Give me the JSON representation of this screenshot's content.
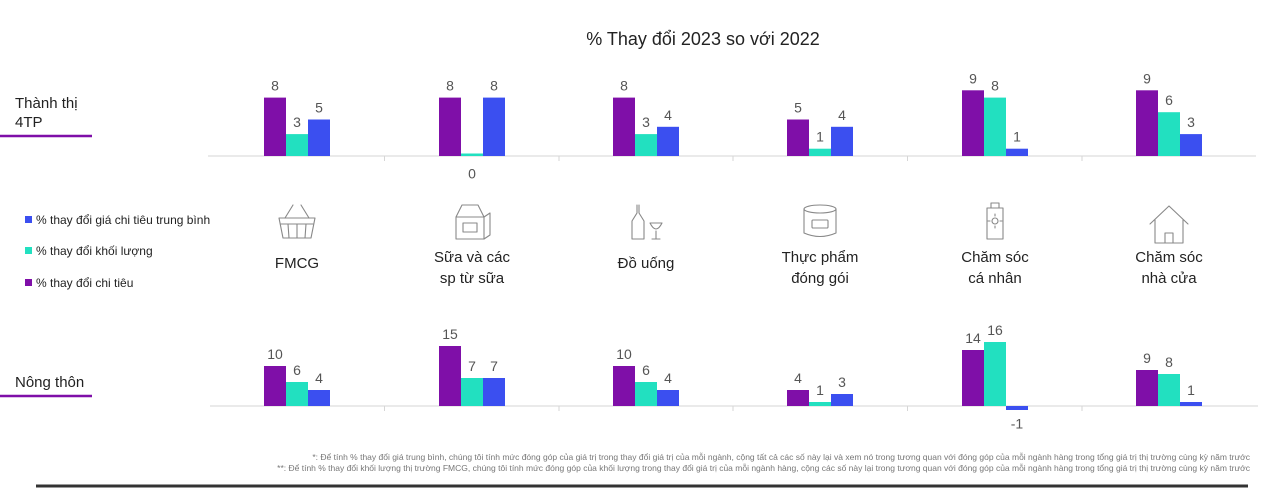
{
  "title": "% Thay đổi 2023 so với 2022",
  "colors": {
    "spend": "#7f0fa8",
    "volume": "#22e0c0",
    "avg_price": "#3b4ff0",
    "accent": "#22d3c5"
  },
  "legend": [
    {
      "key": "avg_price",
      "label": "% thay đổi giá chi tiêu trung bình"
    },
    {
      "key": "volume",
      "label": "% thay đổi khối lượng"
    },
    {
      "key": "spend",
      "label": "% thay đổi chi tiêu"
    }
  ],
  "categories": [
    {
      "lines": [
        "FMCG"
      ],
      "icon": "basket-icon"
    },
    {
      "lines": [
        "Sữa và các",
        "sp từ sữa"
      ],
      "icon": "milk-carton-icon"
    },
    {
      "lines": [
        "Đồ uống"
      ],
      "icon": "bottle-glass-icon"
    },
    {
      "lines": [
        "Thực phẩm",
        "đóng gói"
      ],
      "icon": "food-can-icon"
    },
    {
      "lines": [
        "Chăm sóc",
        "cá nhân"
      ],
      "icon": "lotion-tube-icon"
    },
    {
      "lines": [
        "Chăm sóc",
        "nhà cửa"
      ],
      "icon": "house-icon"
    }
  ],
  "chart_data": [
    {
      "type": "bar",
      "region": [
        "Thành thị",
        "4TP"
      ],
      "categories": [
        "FMCG",
        "Sữa và các sp từ sữa",
        "Đồ uống",
        "Thực phẩm đóng gói",
        "Chăm sóc cá nhân",
        "Chăm sóc nhà cửa"
      ],
      "series": [
        {
          "name": "% thay đổi chi tiêu",
          "key": "spend",
          "values": [
            8,
            8,
            8,
            5,
            9,
            9
          ]
        },
        {
          "name": "% thay đổi khối lượng",
          "key": "volume",
          "values": [
            3,
            0,
            3,
            1,
            8,
            6
          ]
        },
        {
          "name": "% thay đổi giá chi tiêu trung bình",
          "key": "avg_price",
          "values": [
            5,
            8,
            4,
            4,
            1,
            3
          ]
        }
      ]
    },
    {
      "type": "bar",
      "region": [
        "Nông thôn"
      ],
      "categories": [
        "FMCG",
        "Sữa và các sp từ sữa",
        "Đồ uống",
        "Thực phẩm đóng gói",
        "Chăm sóc cá nhân",
        "Chăm sóc nhà cửa"
      ],
      "series": [
        {
          "name": "% thay đổi chi tiêu",
          "key": "spend",
          "values": [
            10,
            15,
            10,
            4,
            14,
            9
          ]
        },
        {
          "name": "% thay đổi khối lượng",
          "key": "volume",
          "values": [
            6,
            7,
            6,
            1,
            16,
            8
          ]
        },
        {
          "name": "% thay đổi giá chi tiêu trung bình",
          "key": "avg_price",
          "values": [
            4,
            7,
            4,
            3,
            -1,
            1
          ]
        }
      ]
    }
  ],
  "footnotes": [
    "*: Để tính % thay đổi giá trung bình, chúng tôi tính mức đóng góp của giá trị trong thay đổi giá trị của mỗi ngành, cộng tất cả các số này lại và xem nó trong tương quan với đóng góp của mỗi ngành hàng trong tổng giá trị thị trường cùng kỳ năm trước",
    "**: Để tính % thay đổi khối lượng thị trường FMCG, chúng tôi tính mức đóng góp của khối lượng trong thay đổi giá trị của mỗi ngành hàng, cộng các số này lại trong tương quan với đóng góp của mỗi ngành hàng trong tổng giá trị thị trường cùng kỳ năm trước"
  ]
}
